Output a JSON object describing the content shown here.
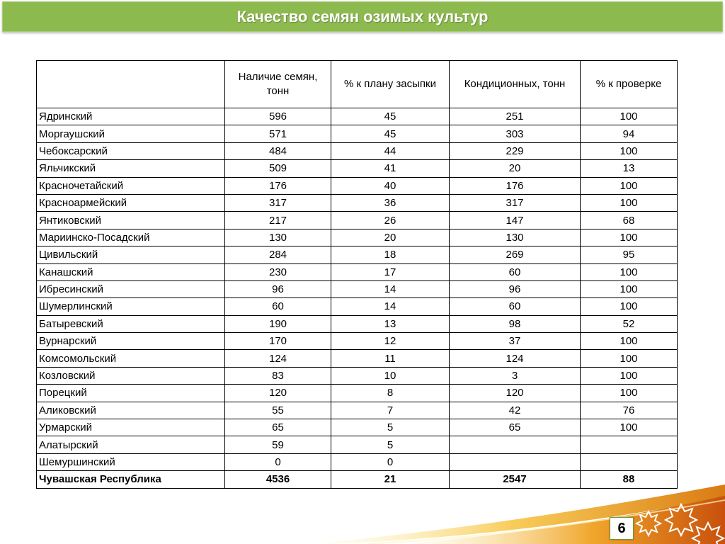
{
  "title": "Качество семян озимых культур",
  "page_number": "6",
  "colors": {
    "title_bar": "#8dba4f",
    "swoosh": "#e8a020",
    "star": "#ffffff"
  },
  "table": {
    "headers": [
      "",
      "Наличие семян, тонн",
      "% к плану засыпки",
      "Кондиционных, тонн",
      "% к проверке"
    ],
    "rows": [
      [
        "Ядринский",
        "596",
        "45",
        "251",
        "100"
      ],
      [
        "Моргаушский",
        "571",
        "45",
        "303",
        "94"
      ],
      [
        "Чебоксарский",
        "484",
        "44",
        "229",
        "100"
      ],
      [
        "Яльчикский",
        "509",
        "41",
        "20",
        "13"
      ],
      [
        "Красночетайский",
        "176",
        "40",
        "176",
        "100"
      ],
      [
        "Красноармейский",
        "317",
        "36",
        "317",
        "100"
      ],
      [
        "Янтиковский",
        "217",
        "26",
        "147",
        "68"
      ],
      [
        "Мариинско-Посадский",
        "130",
        "20",
        "130",
        "100"
      ],
      [
        "Цивильский",
        "284",
        "18",
        "269",
        "95"
      ],
      [
        "Канашский",
        "230",
        "17",
        "60",
        "100"
      ],
      [
        "Ибресинский",
        "96",
        "14",
        "96",
        "100"
      ],
      [
        "Шумерлинский",
        "60",
        "14",
        "60",
        "100"
      ],
      [
        "Батыревский",
        "190",
        "13",
        "98",
        "52"
      ],
      [
        "Вурнарский",
        "170",
        "12",
        "37",
        "100"
      ],
      [
        "Комсомольский",
        "124",
        "11",
        "124",
        "100"
      ],
      [
        "Козловский",
        "83",
        "10",
        "3",
        "100"
      ],
      [
        "Порецкий",
        "120",
        "8",
        "120",
        "100"
      ],
      [
        "Аликовский",
        "55",
        "7",
        "42",
        "76"
      ],
      [
        "Урмарский",
        "65",
        "5",
        "65",
        "100"
      ],
      [
        "Алатырский",
        "59",
        "5",
        "",
        ""
      ],
      [
        "Шемуршинский",
        "0",
        "0",
        "",
        ""
      ]
    ],
    "total": [
      "Чувашская Республика",
      "4536",
      "21",
      "2547",
      "88"
    ]
  }
}
